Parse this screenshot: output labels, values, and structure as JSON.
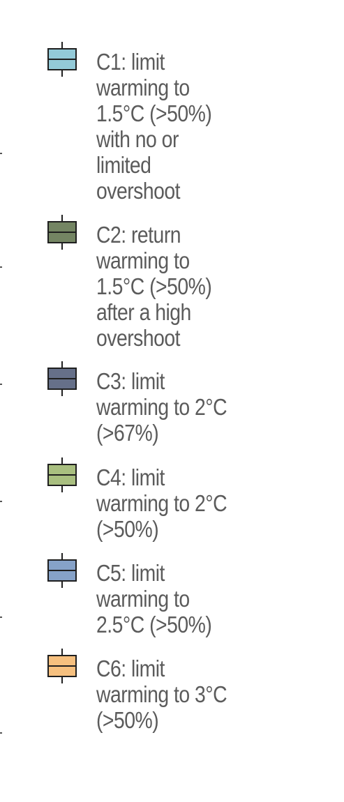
{
  "chart_data": {
    "type": "legend",
    "entries": [
      {
        "id": "C1",
        "label_lines": [
          "C1: limit",
          "warming to",
          "1.5°C (>50%)",
          "with no or",
          "limited",
          "overshoot"
        ],
        "color": "#93cad8"
      },
      {
        "id": "C2",
        "label_lines": [
          "C2: return",
          "warming to",
          "1.5°C (>50%)",
          "after a high",
          "overshoot"
        ],
        "color": "#748563"
      },
      {
        "id": "C3",
        "label_lines": [
          "C3: limit",
          "warming to 2°C",
          "(>67%)"
        ],
        "color": "#667089"
      },
      {
        "id": "C4",
        "label_lines": [
          "C4: limit",
          "warming to 2°C",
          "(>50%)"
        ],
        "color": "#a9bf80"
      },
      {
        "id": "C5",
        "label_lines": [
          "C5: limit",
          "warming to",
          "2.5°C (>50%)"
        ],
        "color": "#86a2c8"
      },
      {
        "id": "C6",
        "label_lines": [
          "C6: limit",
          "warming to 3°C",
          "(>50%)"
        ],
        "color": "#f6c07f"
      }
    ],
    "symbol": "boxplot",
    "text_color": "#5b5b5b",
    "outline_color": "#1f1f1f"
  }
}
